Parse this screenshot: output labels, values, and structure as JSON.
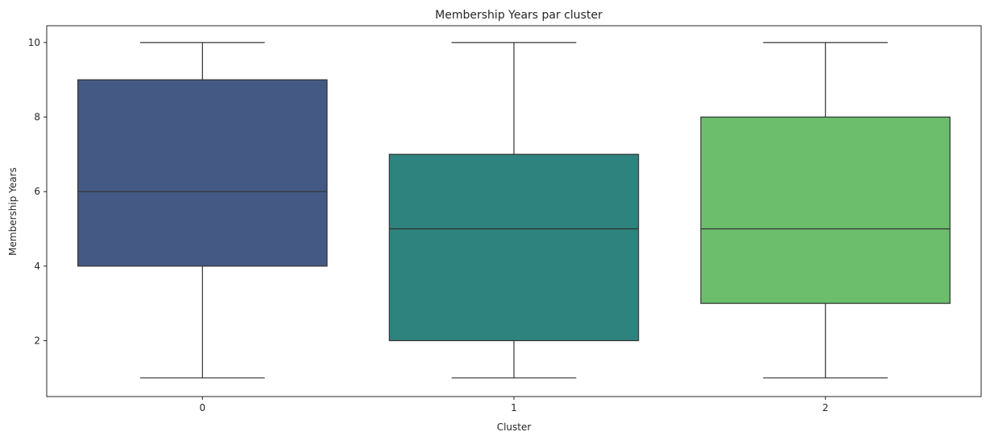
{
  "chart_data": {
    "type": "box",
    "title": "Membership Years par cluster",
    "xlabel": "Cluster",
    "ylabel": "Membership Years",
    "categories": [
      "0",
      "1",
      "2"
    ],
    "ylim": [
      0.5,
      10.45
    ],
    "yticks": [
      2,
      4,
      6,
      8,
      10
    ],
    "grid": false,
    "boxes": [
      {
        "category": "0",
        "min": 1,
        "q1": 4,
        "median": 6,
        "q3": 9,
        "max": 10,
        "color": "#445a84"
      },
      {
        "category": "1",
        "min": 1,
        "q1": 2,
        "median": 5,
        "q3": 7,
        "max": 10,
        "color": "#2e837e"
      },
      {
        "category": "2",
        "min": 1,
        "q1": 3,
        "median": 5,
        "q3": 8,
        "max": 10,
        "color": "#6cbd6c"
      }
    ],
    "line_color": "#333333"
  }
}
